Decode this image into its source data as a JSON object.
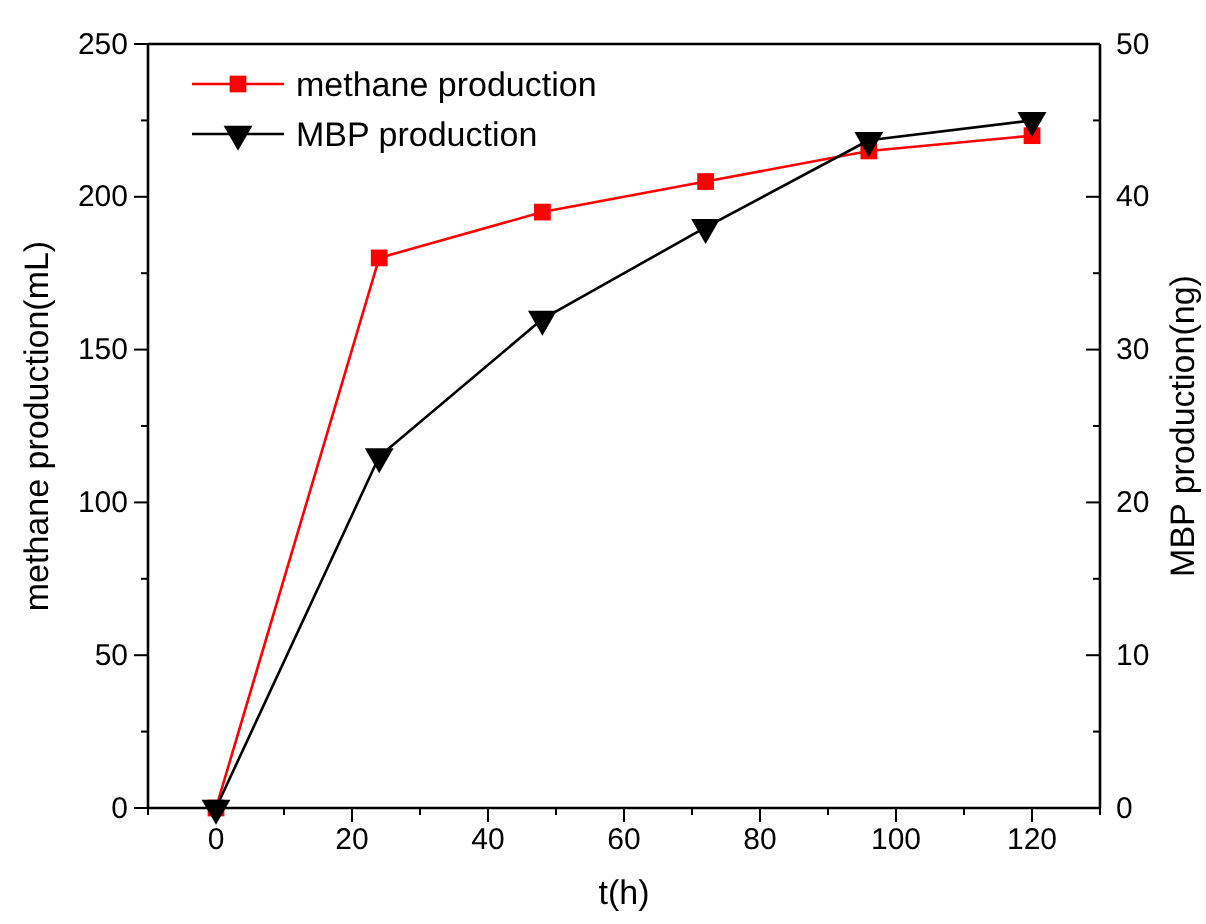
{
  "chart_data": {
    "type": "line",
    "xlabel": "t(h)",
    "ylabel": "methane production(mL)",
    "y2label": "MBP production(ng)",
    "x": [
      0,
      24,
      48,
      72,
      96,
      120
    ],
    "series": [
      {
        "name": "methane production",
        "color": "#ff0000",
        "values": [
          0,
          180,
          195,
          205,
          215,
          220
        ],
        "marker": "square"
      },
      {
        "name": "MBP production",
        "color": "#000000",
        "values": [
          0,
          23,
          32,
          38,
          43.7,
          45
        ],
        "marker": "triangle",
        "axis": "y2"
      }
    ],
    "xlim": [
      -10,
      130
    ],
    "xticks": [
      {
        "value": -10,
        "label": null
      },
      0,
      {
        "value": 10,
        "label": null
      },
      20,
      {
        "value": 30,
        "label": null
      },
      40,
      {
        "value": 50,
        "label": null
      },
      60,
      {
        "value": 70,
        "label": null
      },
      80,
      {
        "value": 90,
        "label": null
      },
      100,
      {
        "value": 110,
        "label": null
      },
      120,
      {
        "value": 130,
        "label": null
      }
    ],
    "ylim": [
      0,
      250
    ],
    "yticks": [
      0,
      {
        "value": 25,
        "label": null
      },
      50,
      {
        "value": 75,
        "label": null
      },
      100,
      {
        "value": 125,
        "label": null
      },
      150,
      {
        "value": 175,
        "label": null
      },
      200,
      {
        "value": 225,
        "label": null
      },
      250
    ],
    "y2lim": [
      0,
      50
    ],
    "y2ticks": [
      0,
      {
        "value": 5,
        "label": null
      },
      10,
      {
        "value": 15,
        "label": null
      },
      20,
      {
        "value": 25,
        "label": null
      },
      30,
      {
        "value": 35,
        "label": null
      },
      40,
      {
        "value": 45,
        "label": null
      },
      50
    ],
    "legend": "top left",
    "grid": false,
    "line_style": "solid"
  }
}
